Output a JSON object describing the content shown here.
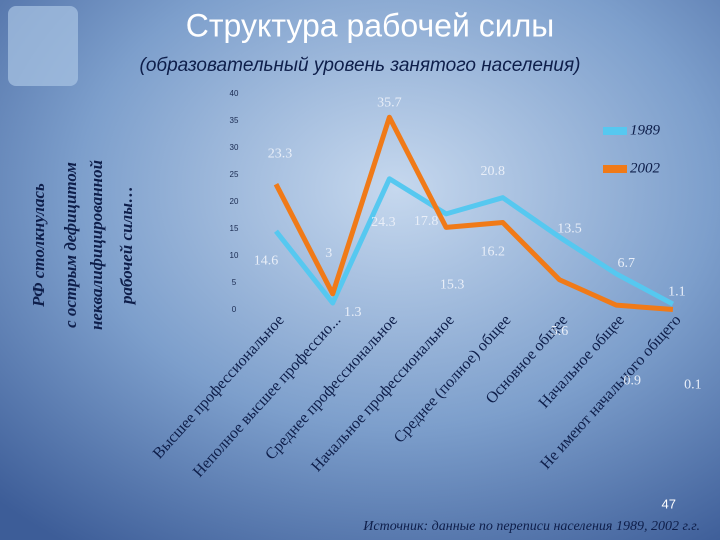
{
  "chart_data": {
    "type": "line",
    "title": "Структура рабочей силы",
    "subtitle": "(образовательный уровень занятого населения)",
    "side_note": [
      "РФ столкнулась",
      "с острым дефицитом",
      "неквалифицированной",
      "рабочей силы…"
    ],
    "categories": [
      "Высшее профессиональное",
      "Неполное высшее профессио...",
      "Среднее профессиональное",
      "Начальное профессиональное",
      "Среднее (полное) общее",
      "Основное общее",
      "Начальное общее",
      "Не имеют начального общего"
    ],
    "series": [
      {
        "name": "1989",
        "color": "#56c8f0",
        "values": [
          14.6,
          1.3,
          24.3,
          17.8,
          20.8,
          13.5,
          6.7,
          1.1
        ]
      },
      {
        "name": "2002",
        "color": "#f07a18",
        "values": [
          23.3,
          3,
          35.7,
          15.3,
          16.2,
          5.6,
          0.9,
          0.1
        ]
      }
    ],
    "ylim": [
      0,
      40
    ],
    "yticks": [
      0,
      5,
      10,
      15,
      20,
      25,
      30,
      35,
      40
    ],
    "legend": "upper right",
    "page_number": "47",
    "source": "Источник: данные по переписи населения 1989, 2002 г.г."
  }
}
